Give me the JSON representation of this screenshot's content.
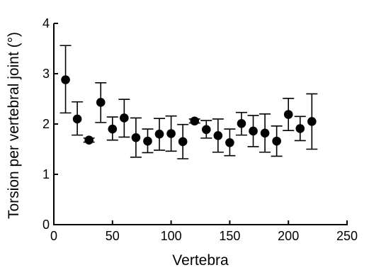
{
  "chart_data": {
    "type": "scatter",
    "title": "",
    "xlabel": "Vertebra",
    "ylabel": "Torsion per vertebral joint (°)",
    "xlim": [
      0,
      250
    ],
    "ylim": [
      0,
      4
    ],
    "x_ticks": [
      "0",
      "50",
      "100",
      "150",
      "200",
      "250"
    ],
    "y_ticks": [
      "0",
      "1",
      "2",
      "3",
      "4"
    ],
    "grid": false,
    "error_bars": true,
    "series": [
      {
        "points": [
          {
            "x": 10,
            "y": 2.88,
            "lo": 2.22,
            "hi": 3.56
          },
          {
            "x": 20,
            "y": 2.1,
            "lo": 1.78,
            "hi": 2.44
          },
          {
            "x": 30,
            "y": 1.68,
            "lo": 1.64,
            "hi": 1.72
          },
          {
            "x": 40,
            "y": 2.43,
            "lo": 2.03,
            "hi": 2.82
          },
          {
            "x": 50,
            "y": 1.9,
            "lo": 1.68,
            "hi": 2.14
          },
          {
            "x": 60,
            "y": 2.12,
            "lo": 1.74,
            "hi": 2.49
          },
          {
            "x": 70,
            "y": 1.73,
            "lo": 1.34,
            "hi": 2.12
          },
          {
            "x": 80,
            "y": 1.66,
            "lo": 1.43,
            "hi": 1.9
          },
          {
            "x": 90,
            "y": 1.8,
            "lo": 1.48,
            "hi": 2.11
          },
          {
            "x": 100,
            "y": 1.81,
            "lo": 1.46,
            "hi": 2.16
          },
          {
            "x": 110,
            "y": 1.65,
            "lo": 1.31,
            "hi": 1.99
          },
          {
            "x": 120,
            "y": 2.06,
            "lo": 2.02,
            "hi": 2.1
          },
          {
            "x": 130,
            "y": 1.89,
            "lo": 1.72,
            "hi": 2.07
          },
          {
            "x": 140,
            "y": 1.77,
            "lo": 1.44,
            "hi": 2.1
          },
          {
            "x": 150,
            "y": 1.63,
            "lo": 1.37,
            "hi": 1.9
          },
          {
            "x": 160,
            "y": 2.01,
            "lo": 1.78,
            "hi": 2.23
          },
          {
            "x": 170,
            "y": 1.86,
            "lo": 1.55,
            "hi": 2.17
          },
          {
            "x": 180,
            "y": 1.82,
            "lo": 1.44,
            "hi": 2.2
          },
          {
            "x": 190,
            "y": 1.66,
            "lo": 1.36,
            "hi": 1.96
          },
          {
            "x": 200,
            "y": 2.19,
            "lo": 1.87,
            "hi": 2.51
          },
          {
            "x": 210,
            "y": 1.91,
            "lo": 1.67,
            "hi": 2.15
          },
          {
            "x": 220,
            "y": 2.05,
            "lo": 1.5,
            "hi": 2.6
          }
        ]
      }
    ]
  }
}
